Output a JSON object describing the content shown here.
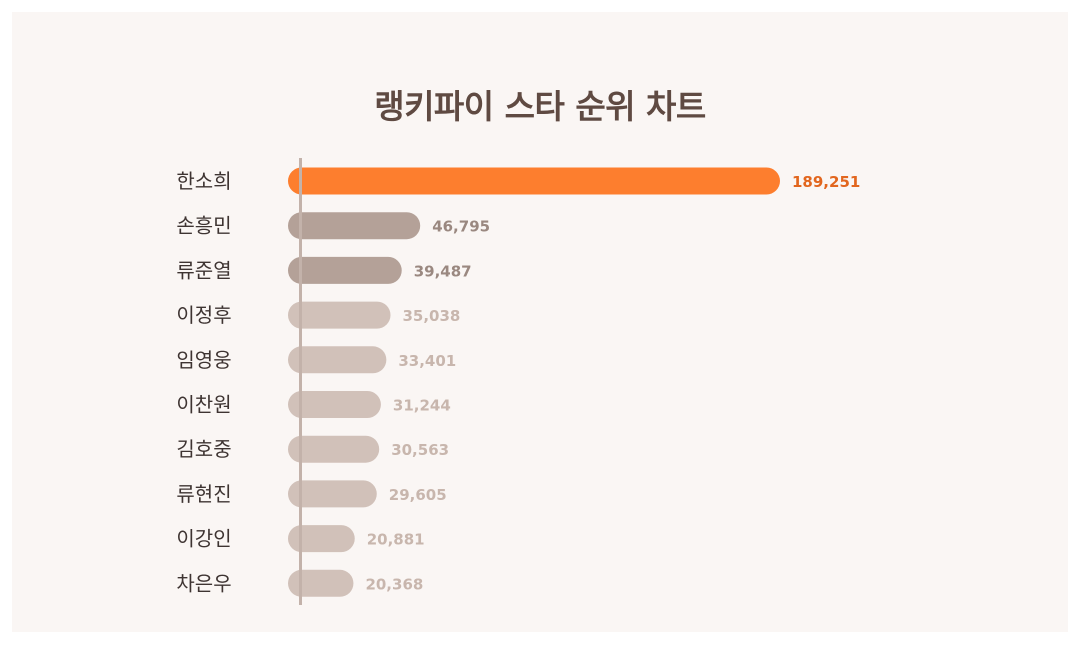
{
  "colors": {
    "top": "#fd7e2e",
    "mid": "#b4a198",
    "low": "#d1c1b9",
    "top_text": "#e2661e",
    "mid_text": "#9a8880",
    "low_text": "#c8b6ad",
    "axis": "#c3b2aa"
  },
  "chart_data": {
    "type": "bar",
    "orientation": "horizontal",
    "title": "랭키파이 스타 순위 차트",
    "categories": [
      "한소희",
      "손흥민",
      "류준열",
      "이정후",
      "임영웅",
      "이찬원",
      "김호중",
      "류현진",
      "이강인",
      "차은우"
    ],
    "values": [
      189251,
      46795,
      39487,
      35038,
      33401,
      31244,
      30563,
      29605,
      20881,
      20368
    ],
    "value_labels": [
      "189,251",
      "46,795",
      "39,487",
      "35,038",
      "33,401",
      "31,244",
      "30,563",
      "29,605",
      "20,881",
      "20,368"
    ],
    "tiers": [
      "top",
      "mid",
      "mid",
      "low",
      "low",
      "low",
      "low",
      "low",
      "low",
      "low"
    ],
    "xlim": [
      0,
      189251
    ],
    "grid": false,
    "legend": "none"
  }
}
